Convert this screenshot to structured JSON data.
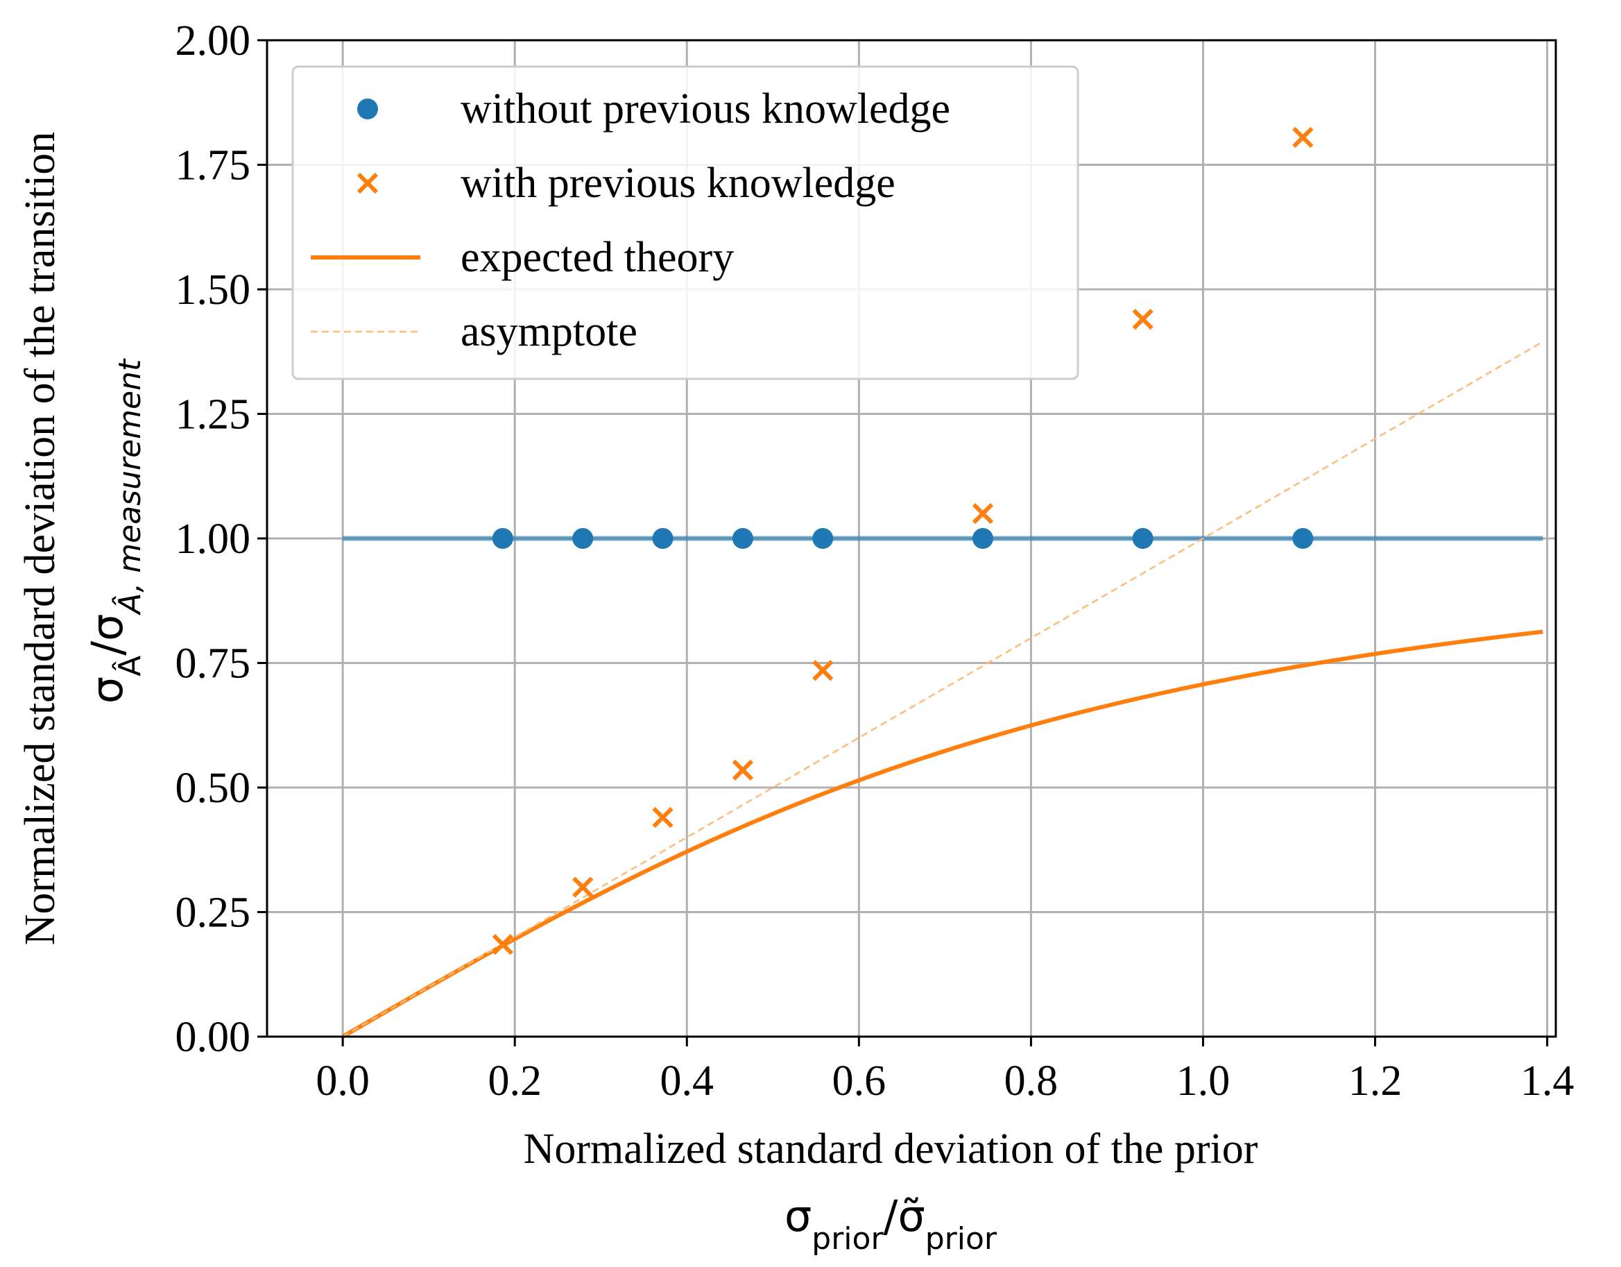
{
  "chart_data": {
    "type": "scatter",
    "xlabel": "Normalized standard deviation of the prior",
    "xlabel_math": {
      "base": "σ",
      "sub": "prior",
      "sep": "/",
      "base2": "σ̃",
      "sub2": "prior"
    },
    "ylabel": "Normalized standard deviation of the transition",
    "ylabel_math": {
      "base": "σ",
      "sub": "Â",
      "sep": "/",
      "base2": "σ",
      "sub2": "Â, measurement"
    },
    "xlim": [
      -0.088,
      1.41
    ],
    "ylim": [
      0,
      2.0
    ],
    "xticks": [
      0.0,
      0.2,
      0.4,
      0.6,
      0.8,
      1.0,
      1.2,
      1.4
    ],
    "xtick_labels": [
      "0.0",
      "0.2",
      "0.4",
      "0.6",
      "0.8",
      "1.0",
      "1.2",
      "1.4"
    ],
    "yticks": [
      0.0,
      0.25,
      0.5,
      0.75,
      1.0,
      1.25,
      1.5,
      1.75,
      2.0
    ],
    "ytick_labels": [
      "0.00",
      "0.25",
      "0.50",
      "0.75",
      "1.00",
      "1.25",
      "1.50",
      "1.75",
      "2.00"
    ],
    "grid": true,
    "legend_position": "upper-left",
    "series": [
      {
        "name": "without previous knowledge",
        "kind": "scatter-circle",
        "color": "#1f77b4",
        "x": [
          0.186,
          0.279,
          0.372,
          0.465,
          0.558,
          0.744,
          0.93,
          1.116
        ],
        "y": [
          1.0,
          1.0,
          1.0,
          1.0,
          1.0,
          1.0,
          1.0,
          1.0
        ]
      },
      {
        "name": "with previous knowledge",
        "kind": "scatter-x",
        "color": "#ff7f0e",
        "x": [
          0.186,
          0.279,
          0.372,
          0.465,
          0.558,
          0.744,
          0.93,
          1.116
        ],
        "y": [
          0.185,
          0.3,
          0.44,
          0.535,
          0.735,
          1.05,
          1.44,
          1.805
        ]
      },
      {
        "name": "expected theory",
        "kind": "line",
        "color": "#ff7f0e",
        "function": "x/sqrt(1+x^2)",
        "x_range": [
          0.0,
          1.395
        ]
      },
      {
        "name": "asymptote",
        "kind": "dashed-line",
        "color": "#ffbb78",
        "function": "x",
        "x_range": [
          0.0,
          1.395
        ]
      },
      {
        "name": "",
        "kind": "reference-line",
        "color": "#1f77b4",
        "y": 1.0,
        "x_range": [
          0.0,
          1.395
        ]
      }
    ]
  }
}
